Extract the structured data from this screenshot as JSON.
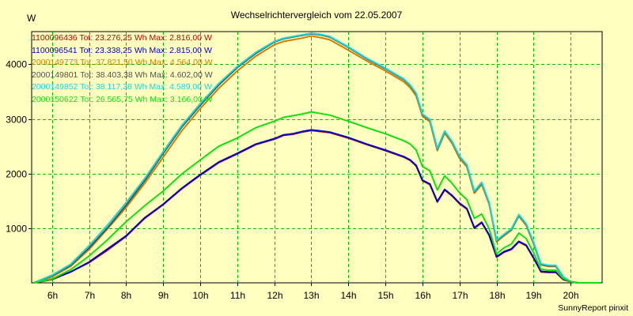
{
  "chart_data": {
    "type": "line",
    "title": "Wechselrichtervergleich vom 22.05.2007",
    "ylabel": "W",
    "xlabel": "",
    "ylim": [
      0,
      4600
    ],
    "yticks": [
      1000,
      2000,
      3000,
      4000
    ],
    "xlim": [
      5.45,
      20.85
    ],
    "xticks": [
      "6h",
      "7h",
      "8h",
      "9h",
      "10h",
      "11h",
      "12h",
      "13h",
      "14h",
      "15h",
      "16h",
      "17h",
      "18h",
      "19h",
      "20h"
    ],
    "grid": true,
    "footer": "SunnyReport pinxit",
    "x": [
      5.5,
      6.0,
      6.5,
      7.0,
      7.5,
      8.0,
      8.5,
      9.0,
      9.5,
      10.0,
      10.5,
      11.0,
      11.5,
      12.0,
      12.25,
      12.5,
      12.75,
      13.0,
      13.25,
      13.5,
      14.0,
      14.5,
      15.0,
      15.5,
      15.67,
      15.83,
      16.0,
      16.2,
      16.4,
      16.6,
      16.8,
      17.0,
      17.2,
      17.4,
      17.6,
      17.8,
      18.0,
      18.2,
      18.4,
      18.6,
      18.8,
      19.0,
      19.2,
      19.4,
      19.6,
      19.8,
      20.0,
      20.2,
      20.4,
      20.6,
      20.8
    ],
    "series": [
      {
        "name": "1100096436",
        "legend": "1100096436 Tot: 23.276,25 Wh Max: 2.816,00 W",
        "color": "#c00000",
        "values": [
          0,
          60,
          200,
          370,
          600,
          850,
          1180,
          1430,
          1720,
          1970,
          2200,
          2360,
          2530,
          2630,
          2700,
          2720,
          2760,
          2790,
          2770,
          2750,
          2650,
          2530,
          2420,
          2300,
          2240,
          2140,
          1870,
          1800,
          1480,
          1700,
          1590,
          1450,
          1350,
          1000,
          1100,
          870,
          470,
          560,
          610,
          750,
          680,
          450,
          200,
          190,
          190,
          60,
          20,
          0,
          0,
          0,
          0
        ]
      },
      {
        "name": "1100096541",
        "legend": "1100096541 Tot: 23.338,25 Wh Max: 2.815,00 W",
        "color": "#0000c8",
        "values": [
          0,
          70,
          200,
          380,
          620,
          860,
          1190,
          1440,
          1730,
          1980,
          2210,
          2370,
          2540,
          2640,
          2710,
          2730,
          2770,
          2800,
          2780,
          2760,
          2660,
          2540,
          2430,
          2310,
          2250,
          2150,
          1880,
          1810,
          1490,
          1710,
          1600,
          1460,
          1360,
          1010,
          1110,
          880,
          480,
          570,
          620,
          760,
          690,
          460,
          210,
          200,
          200,
          70,
          20,
          0,
          0,
          0,
          0
        ]
      },
      {
        "name": "2000149773",
        "legend": "2000149773 Tot: 37.821,50 Wh Max: 4.564,00 W",
        "color": "#d08000",
        "values": [
          0,
          110,
          300,
          610,
          990,
          1380,
          1820,
          2300,
          2780,
          3190,
          3560,
          3880,
          4150,
          4360,
          4420,
          4450,
          4480,
          4520,
          4490,
          4450,
          4260,
          4060,
          3880,
          3680,
          3570,
          3420,
          3050,
          2950,
          2420,
          2740,
          2550,
          2280,
          2120,
          1640,
          1800,
          1440,
          750,
          860,
          960,
          1220,
          1050,
          710,
          330,
          300,
          300,
          100,
          20,
          0,
          0,
          0,
          0
        ]
      },
      {
        "name": "2000149801",
        "legend": "2000149801 Tot: 38.403,38 Wh Max: 4.602,00 W",
        "color": "#505050",
        "values": [
          0,
          130,
          320,
          640,
          1010,
          1420,
          1870,
          2370,
          2850,
          3250,
          3620,
          3940,
          4200,
          4410,
          4470,
          4500,
          4530,
          4560,
          4540,
          4500,
          4310,
          4100,
          3920,
          3720,
          3610,
          3460,
          3080,
          2980,
          2450,
          2770,
          2580,
          2310,
          2150,
          1670,
          1830,
          1460,
          770,
          880,
          980,
          1240,
          1070,
          730,
          340,
          310,
          310,
          110,
          20,
          0,
          0,
          0,
          0
        ]
      },
      {
        "name": "2000149852",
        "legend": "2000149852 Tot: 38.117,38 Wh Max: 4.589,00 W",
        "color": "#10d8e0",
        "values": [
          0,
          140,
          340,
          680,
          1060,
          1470,
          1910,
          2400,
          2880,
          3280,
          3650,
          3960,
          4220,
          4420,
          4480,
          4510,
          4540,
          4570,
          4550,
          4510,
          4320,
          4110,
          3930,
          3730,
          3620,
          3470,
          3090,
          2990,
          2460,
          2780,
          2590,
          2320,
          2160,
          1680,
          1840,
          1470,
          780,
          890,
          990,
          1250,
          1080,
          740,
          350,
          320,
          320,
          110,
          20,
          0,
          0,
          0,
          0
        ]
      },
      {
        "name": "2000150622",
        "legend": "2000150622 Tot: 26.565,75 Wh Max: 3.166,00 W",
        "color": "#10e010",
        "values": [
          0,
          70,
          240,
          490,
          790,
          1120,
          1410,
          1680,
          1990,
          2250,
          2500,
          2650,
          2840,
          2960,
          3030,
          3060,
          3090,
          3130,
          3100,
          3070,
          2960,
          2840,
          2730,
          2600,
          2540,
          2430,
          2130,
          2050,
          1700,
          1960,
          1820,
          1650,
          1520,
          1180,
          1260,
          990,
          530,
          640,
          710,
          910,
          810,
          550,
          250,
          230,
          230,
          80,
          20,
          0,
          0,
          0,
          0
        ]
      }
    ]
  }
}
